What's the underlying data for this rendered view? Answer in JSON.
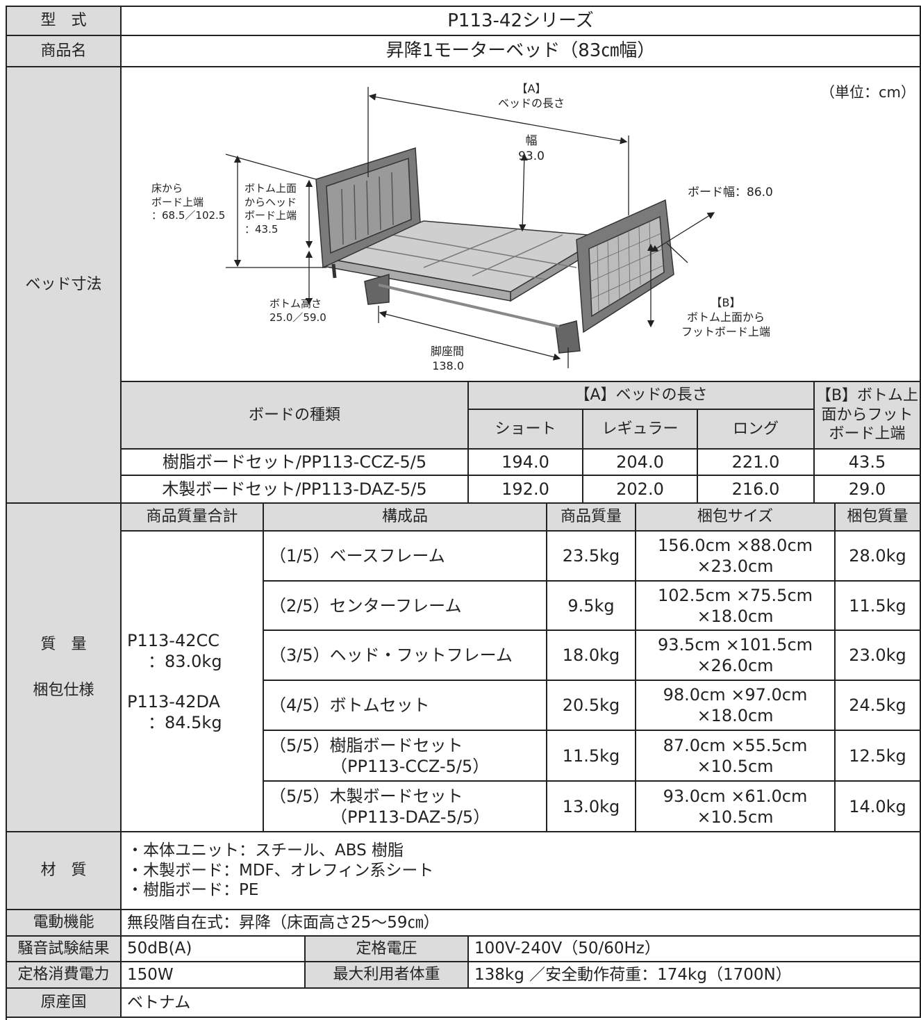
{
  "model": {
    "label": "型　式",
    "value": "P113-42シリーズ"
  },
  "product_name": {
    "label": "商品名",
    "value": "昇降1モーターベッド（83㎝幅）"
  },
  "dimensions": {
    "label": "ベッド寸法",
    "diagram": {
      "unit": "（単位：cm）",
      "length": [
        "【A】",
        "ベッドの長さ"
      ],
      "width": [
        "幅",
        "93.0"
      ],
      "floor_to_board": [
        "床から",
        "ボード上端",
        "：68.5／102.5"
      ],
      "bottom_to_head": [
        "ボトム上面",
        "からヘッド",
        "ボード上端",
        "：43.5"
      ],
      "board_width": "ボード幅：86.0",
      "bottom_height": [
        "ボトム高さ",
        "25.0／59.0"
      ],
      "leg_span": [
        "脚座間",
        "138.0"
      ],
      "bottom_to_foot": [
        "【B】",
        "ボトム上面から",
        "フットボード上端"
      ]
    },
    "table": {
      "board_type": "ボードの種類",
      "length_header": "【A】ベッドの長さ",
      "length_types": [
        "ショート",
        "レギュラー",
        "ロング"
      ],
      "foot_header": [
        "【B】ボトム上",
        "面からフット",
        "ボード上端"
      ],
      "rows": [
        [
          "樹脂ボードセット/PP113-CCZ-5/5",
          "194.0",
          "204.0",
          "221.0",
          "43.5"
        ],
        [
          "木製ボードセット/PP113-DAZ-5/5",
          "192.0",
          "202.0",
          "216.0",
          "29.0"
        ]
      ]
    }
  },
  "weight": {
    "label": [
      "質　量",
      "梱包仕様"
    ],
    "header": [
      "商品質量合計",
      "構成品",
      "商品質量",
      "梱包サイズ",
      "梱包質量"
    ],
    "totals": [
      {
        "model": "P113-42CC",
        "weight": "：83.0kg"
      },
      {
        "model": "P113-42DA",
        "weight": "：84.5kg"
      }
    ],
    "components": [
      {
        "part": [
          "（1/5）ベースフレーム"
        ],
        "weight": "23.5kg",
        "size": [
          "156.0cm ×88.0cm",
          "×23.0cm"
        ],
        "package_weight": "28.0kg"
      },
      {
        "part": [
          "（2/5）センターフレーム"
        ],
        "weight": "9.5kg",
        "size": [
          "102.5cm ×75.5cm",
          "×18.0cm"
        ],
        "package_weight": "11.5kg"
      },
      {
        "part": [
          "（3/5）ヘッド・フットフレーム"
        ],
        "weight": "18.0kg",
        "size": [
          "93.5cm ×101.5cm",
          "×26.0cm"
        ],
        "package_weight": "23.0kg"
      },
      {
        "part": [
          "（4/5）ボトムセット"
        ],
        "weight": "20.5kg",
        "size": [
          "98.0cm ×97.0cm",
          "×18.0cm"
        ],
        "package_weight": "24.5kg"
      },
      {
        "part": [
          "（5/5）樹脂ボードセット",
          "（PP113-CCZ-5/5）"
        ],
        "weight": "11.5kg",
        "size": [
          "87.0cm ×55.5cm",
          "×10.5cm"
        ],
        "package_weight": "12.5kg"
      },
      {
        "part": [
          "（5/5）木製ボードセット",
          "（PP113-DAZ-5/5）"
        ],
        "weight": "13.0kg",
        "size": [
          "93.0cm ×61.0cm",
          "×10.5cm"
        ],
        "package_weight": "14.0kg"
      }
    ]
  },
  "material": {
    "label": "材　質",
    "lines": [
      "・本体ユニット：スチール、ABS 樹脂",
      "・木製ボード：MDF、オレフィン系シート",
      "・樹脂ボード：PE"
    ]
  },
  "power_function": {
    "label": "電動機能",
    "value": "無段階自在式：昇降（床面高さ25〜59㎝）"
  },
  "noise": {
    "label": "騒音試験結果",
    "value": "50dB(A)",
    "label2": "定格電圧",
    "value2": "100V-240V（50/60Hz）"
  },
  "power": {
    "label": "定格消費電力",
    "value": "150W",
    "label2": "最大利用者体重",
    "value2": "138kg ／安全動作荷重：174kg（1700N）"
  },
  "origin": {
    "label": "原産国",
    "value": "ベトナム"
  }
}
